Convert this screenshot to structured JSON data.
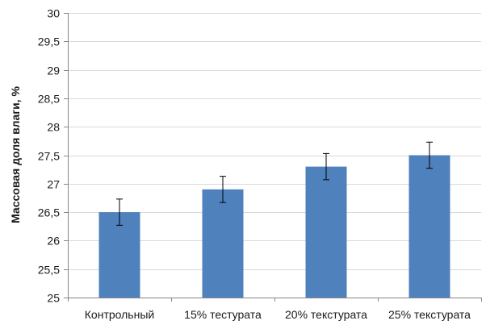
{
  "chart_data": {
    "type": "bar",
    "title": "",
    "xlabel": "",
    "ylabel": "Массовая доля влаги, %",
    "ylim": [
      25,
      30
    ],
    "yticks": [
      "25",
      "25,5",
      "26",
      "26,5",
      "27",
      "27,5",
      "28",
      "28,5",
      "29",
      "29,5",
      "30"
    ],
    "ytick_values": [
      25,
      25.5,
      26,
      26.5,
      27,
      27.5,
      28,
      28.5,
      29,
      29.5,
      30
    ],
    "grid": true,
    "categories": [
      "Контрольный",
      "15% тестурата",
      "20% текстурата",
      "25% текстурата"
    ],
    "values": [
      26.5,
      26.9,
      27.3,
      27.5
    ],
    "error": [
      0.23,
      0.23,
      0.23,
      0.23
    ],
    "bar_color": "#4f81bd",
    "grid_color": "#d9d9d9",
    "axis_color": "#868686"
  }
}
